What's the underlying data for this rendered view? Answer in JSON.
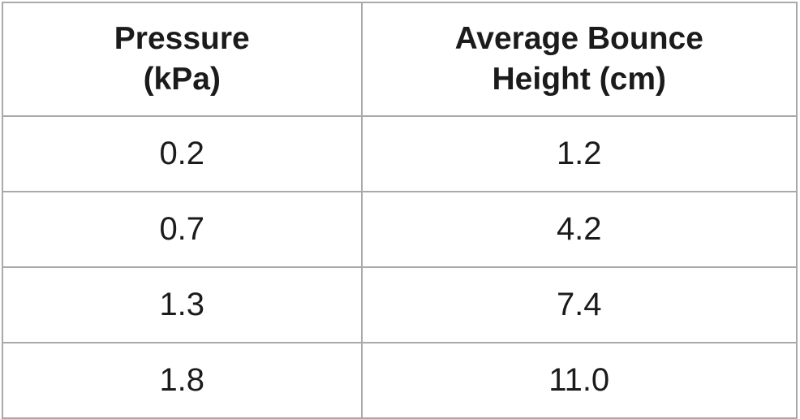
{
  "table": {
    "columns": [
      {
        "label": "Pressure (kPa)",
        "line1": "Pressure",
        "line2": "(kPa)"
      },
      {
        "label": "Average Bounce Height (cm)",
        "line1": "Average Bounce",
        "line2": "Height (cm)"
      }
    ],
    "rows": [
      {
        "cells": [
          "0.2",
          "1.2"
        ]
      },
      {
        "cells": [
          "0.7",
          "4.2"
        ]
      },
      {
        "cells": [
          "1.3",
          "7.4"
        ]
      },
      {
        "cells": [
          "1.8",
          "11.0"
        ]
      }
    ]
  },
  "colors": {
    "border": "#a9a9a9",
    "text": "#1b1b1b",
    "background": "#ffffff"
  },
  "chart_data": {
    "type": "table",
    "title": "",
    "columns": [
      "Pressure (kPa)",
      "Average Bounce Height (cm)"
    ],
    "x": [
      0.2,
      0.7,
      1.3,
      1.8
    ],
    "series": [
      {
        "name": "Average Bounce Height (cm)",
        "values": [
          1.2,
          4.2,
          7.4,
          11.0
        ]
      }
    ],
    "xlabel": "Pressure (kPa)",
    "ylabel": "Average Bounce Height (cm)"
  }
}
